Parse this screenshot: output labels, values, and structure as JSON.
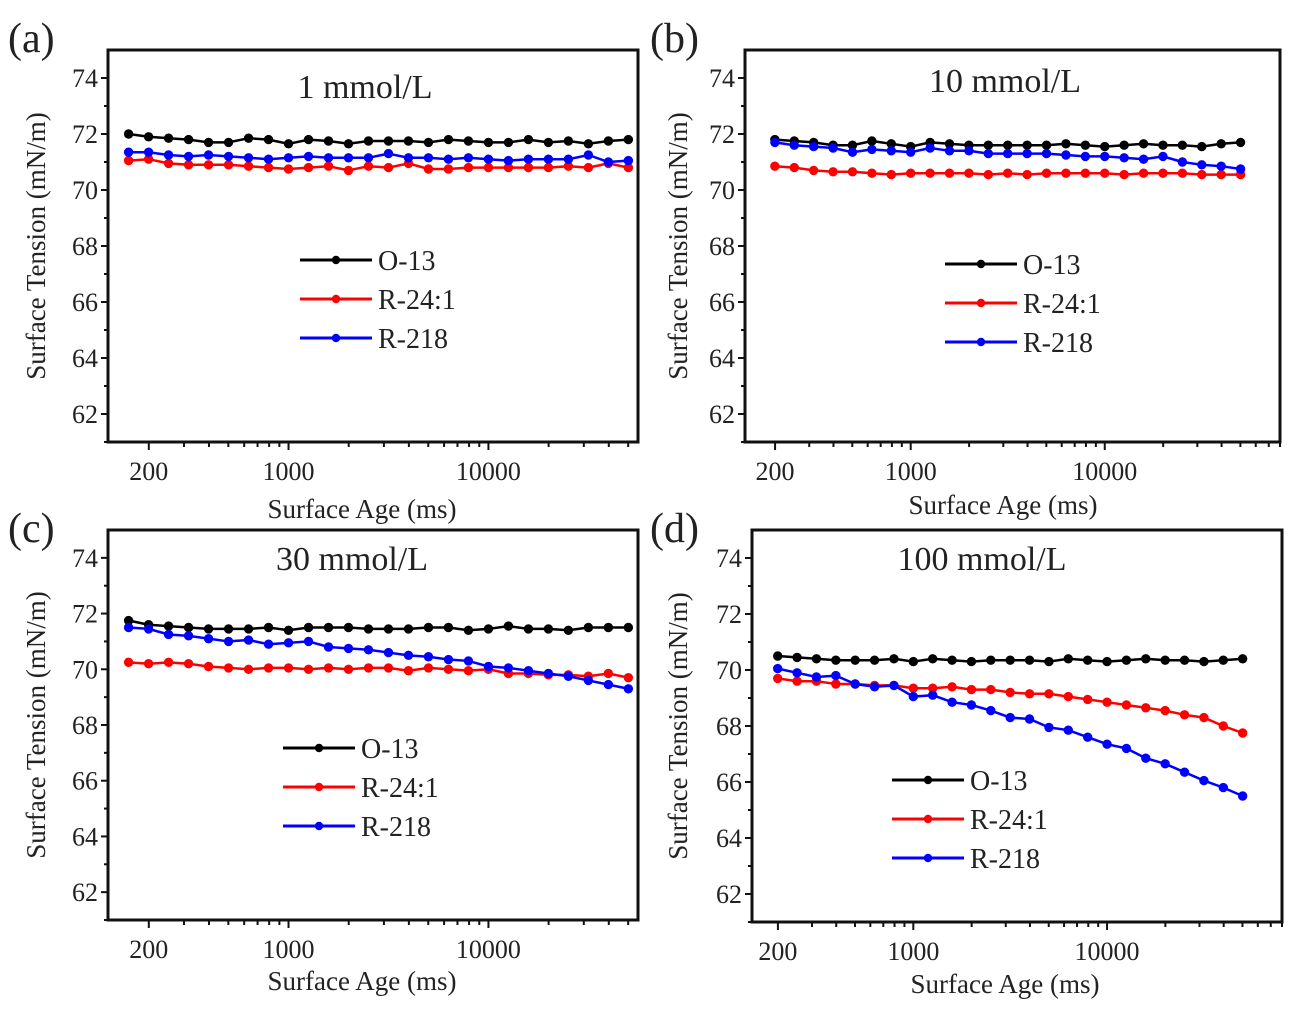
{
  "chart_data": [
    {
      "type": "line",
      "panel_label": "(a)",
      "title": "1 mmol/L",
      "xlabel": "Surface Age (ms)",
      "ylabel": "Surface Tension (mN/m)",
      "xscale": "log",
      "xlim": [
        125,
        56000
      ],
      "ylim": [
        61,
        75
      ],
      "xticks": [
        200,
        1000,
        10000
      ],
      "xtick_labels": [
        "200",
        "1000",
        "10000"
      ],
      "yticks": [
        62,
        64,
        66,
        68,
        70,
        72,
        74
      ],
      "ytick_labels": [
        "62",
        "64",
        "66",
        "68",
        "70",
        "72",
        "74"
      ],
      "legend_placement": "center",
      "x_log_start": 2.2,
      "x_log_step": 0.1,
      "series": [
        {
          "name": "O-13",
          "color": "#000000",
          "values": [
            72.0,
            71.9,
            71.85,
            71.8,
            71.7,
            71.7,
            71.85,
            71.8,
            71.65,
            71.8,
            71.75,
            71.65,
            71.75,
            71.75,
            71.75,
            71.7,
            71.8,
            71.75,
            71.7,
            71.7,
            71.8,
            71.7,
            71.75,
            71.65,
            71.75,
            71.8
          ]
        },
        {
          "name": "R-24:1",
          "color": "#ff0000",
          "values": [
            71.05,
            71.1,
            70.95,
            70.9,
            70.9,
            70.9,
            70.85,
            70.8,
            70.75,
            70.8,
            70.85,
            70.7,
            70.85,
            70.8,
            70.95,
            70.75,
            70.75,
            70.8,
            70.8,
            70.8,
            70.8,
            70.8,
            70.85,
            70.8,
            70.95,
            70.8
          ]
        },
        {
          "name": "R-218",
          "color": "#0000ff",
          "values": [
            71.35,
            71.35,
            71.25,
            71.2,
            71.25,
            71.2,
            71.15,
            71.1,
            71.15,
            71.2,
            71.15,
            71.15,
            71.15,
            71.3,
            71.15,
            71.15,
            71.1,
            71.15,
            71.1,
            71.05,
            71.1,
            71.1,
            71.1,
            71.25,
            71.0,
            71.05
          ]
        }
      ]
    },
    {
      "type": "line",
      "panel_label": "(b)",
      "title": "10 mmol/L",
      "xlabel": "Surface Age (ms)",
      "ylabel": "Surface Tension (mN/m)",
      "xscale": "log",
      "xlim": [
        140,
        80000
      ],
      "ylim": [
        61,
        75
      ],
      "xticks": [
        200,
        1000,
        10000
      ],
      "xtick_labels": [
        "200",
        "1000",
        "10000"
      ],
      "yticks": [
        62,
        64,
        66,
        68,
        70,
        72,
        74
      ],
      "ytick_labels": [
        "62",
        "64",
        "66",
        "68",
        "70",
        "72",
        "74"
      ],
      "legend_placement": "center",
      "x_log_start": 2.3,
      "x_log_step": 0.1,
      "series": [
        {
          "name": "O-13",
          "color": "#000000",
          "values": [
            71.8,
            71.75,
            71.7,
            71.6,
            71.6,
            71.75,
            71.65,
            71.55,
            71.7,
            71.65,
            71.6,
            71.6,
            71.6,
            71.6,
            71.6,
            71.65,
            71.6,
            71.55,
            71.6,
            71.65,
            71.6,
            71.6,
            71.55,
            71.65,
            71.7
          ]
        },
        {
          "name": "R-24:1",
          "color": "#ff0000",
          "values": [
            70.85,
            70.8,
            70.7,
            70.65,
            70.65,
            70.6,
            70.55,
            70.6,
            70.6,
            70.6,
            70.6,
            70.55,
            70.6,
            70.55,
            70.6,
            70.6,
            70.6,
            70.6,
            70.55,
            70.6,
            70.6,
            70.6,
            70.55,
            70.55,
            70.55
          ]
        },
        {
          "name": "R-218",
          "color": "#0000ff",
          "values": [
            71.7,
            71.6,
            71.55,
            71.5,
            71.35,
            71.45,
            71.4,
            71.35,
            71.5,
            71.4,
            71.4,
            71.3,
            71.3,
            71.3,
            71.3,
            71.25,
            71.2,
            71.2,
            71.15,
            71.1,
            71.2,
            71.0,
            70.9,
            70.85,
            70.75
          ]
        }
      ]
    },
    {
      "type": "line",
      "panel_label": "(c)",
      "title": "30 mmol/L",
      "xlabel": "Surface Age (ms)",
      "ylabel": "Surface Tension (mN/m)",
      "xscale": "log",
      "xlim": [
        125,
        56000
      ],
      "ylim": [
        61,
        75
      ],
      "xticks": [
        200,
        1000,
        10000
      ],
      "xtick_labels": [
        "200",
        "1000",
        "10000"
      ],
      "yticks": [
        62,
        64,
        66,
        68,
        70,
        72,
        74
      ],
      "ytick_labels": [
        "62",
        "64",
        "66",
        "68",
        "70",
        "72",
        "74"
      ],
      "legend_placement": "center-left",
      "x_log_start": 2.2,
      "x_log_step": 0.1,
      "series": [
        {
          "name": "O-13",
          "color": "#000000",
          "values": [
            71.75,
            71.6,
            71.55,
            71.5,
            71.45,
            71.45,
            71.45,
            71.5,
            71.4,
            71.5,
            71.5,
            71.5,
            71.45,
            71.45,
            71.45,
            71.5,
            71.5,
            71.4,
            71.45,
            71.55,
            71.45,
            71.45,
            71.4,
            71.5,
            71.5,
            71.5
          ]
        },
        {
          "name": "R-24:1",
          "color": "#ff0000",
          "values": [
            70.25,
            70.2,
            70.25,
            70.2,
            70.1,
            70.05,
            70.0,
            70.05,
            70.05,
            70.0,
            70.05,
            70.0,
            70.05,
            70.05,
            69.95,
            70.05,
            70.0,
            69.95,
            70.0,
            69.85,
            69.85,
            69.8,
            69.8,
            69.75,
            69.85,
            69.7
          ]
        },
        {
          "name": "R-218",
          "color": "#0000ff",
          "values": [
            71.5,
            71.45,
            71.25,
            71.2,
            71.1,
            71.0,
            71.05,
            70.9,
            70.95,
            71.0,
            70.8,
            70.75,
            70.7,
            70.6,
            70.5,
            70.45,
            70.35,
            70.3,
            70.1,
            70.05,
            69.95,
            69.85,
            69.75,
            69.6,
            69.45,
            69.3
          ]
        }
      ]
    },
    {
      "type": "line",
      "panel_label": "(d)",
      "title": "100 mmol/L",
      "xlabel": "Surface Age (ms)",
      "ylabel": "Surface Tension (mN/m)",
      "xscale": "log",
      "xlim": [
        147,
        80000
      ],
      "ylim": [
        61,
        75
      ],
      "xticks": [
        200,
        1000,
        10000
      ],
      "xtick_labels": [
        "200",
        "1000",
        "10000"
      ],
      "yticks": [
        62,
        64,
        66,
        68,
        70,
        72,
        74
      ],
      "ytick_labels": [
        "62",
        "64",
        "66",
        "68",
        "70",
        "72",
        "74"
      ],
      "legend_placement": "center-right",
      "x_log_start": 2.3,
      "x_log_step": 0.1,
      "series": [
        {
          "name": "O-13",
          "color": "#000000",
          "values": [
            70.5,
            70.45,
            70.4,
            70.35,
            70.35,
            70.35,
            70.4,
            70.3,
            70.4,
            70.35,
            70.3,
            70.35,
            70.35,
            70.35,
            70.3,
            70.4,
            70.35,
            70.3,
            70.35,
            70.4,
            70.35,
            70.35,
            70.3,
            70.35,
            70.4
          ]
        },
        {
          "name": "R-24:1",
          "color": "#ff0000",
          "values": [
            69.7,
            69.6,
            69.6,
            69.5,
            69.5,
            69.45,
            69.45,
            69.35,
            69.35,
            69.4,
            69.3,
            69.3,
            69.2,
            69.15,
            69.15,
            69.05,
            68.95,
            68.85,
            68.75,
            68.65,
            68.55,
            68.4,
            68.3,
            68.0,
            67.75
          ]
        },
        {
          "name": "R-218",
          "color": "#0000ff",
          "values": [
            70.05,
            69.9,
            69.75,
            69.8,
            69.5,
            69.4,
            69.45,
            69.05,
            69.1,
            68.85,
            68.75,
            68.55,
            68.3,
            68.25,
            67.95,
            67.85,
            67.6,
            67.35,
            67.2,
            66.85,
            66.65,
            66.35,
            66.05,
            65.8,
            65.5
          ]
        }
      ]
    }
  ]
}
